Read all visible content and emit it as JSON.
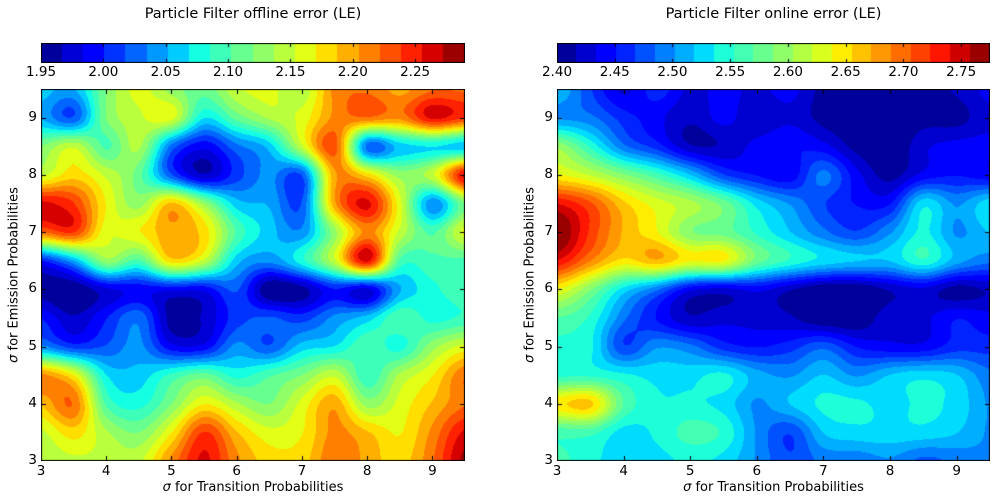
{
  "figure": {
    "background": "#ffffff",
    "text_color": "#000000"
  },
  "chart_data": [
    {
      "type": "heatmap",
      "title": "Particle Filter offline error (LE)",
      "xlabel": "σ for Transition Probabilities",
      "ylabel": "σ for Emission Probabilities",
      "colormap": "jet",
      "levels": 20,
      "vmin": 1.95,
      "vmax": 2.29,
      "colorbar_tick_values": [
        1.95,
        2.0,
        2.05,
        2.1,
        2.15,
        2.2,
        2.25
      ],
      "colorbar_tick_labels": [
        "1.95",
        "2.00",
        "2.05",
        "2.10",
        "2.15",
        "2.20",
        "2.25"
      ],
      "x_ticks": [
        3,
        4,
        5,
        6,
        7,
        8,
        9
      ],
      "y_ticks": [
        3,
        4,
        5,
        6,
        7,
        8,
        9
      ],
      "x_range": [
        3,
        9.5
      ],
      "y_range": [
        3,
        9.5
      ],
      "grid_x": [
        3.0,
        3.5,
        4.0,
        4.5,
        5.0,
        5.5,
        6.0,
        6.5,
        7.0,
        7.5,
        8.0,
        8.5,
        9.0,
        9.5
      ],
      "grid_y": [
        3.0,
        3.5,
        4.0,
        4.5,
        5.0,
        5.5,
        6.0,
        6.5,
        7.0,
        7.5,
        8.0,
        8.5,
        9.0,
        9.5
      ],
      "values_note": "approximate error values estimated from contour colors; rows ordered bottom (y=3.0) to top (y=9.5)",
      "values": [
        [
          2.14,
          2.15,
          2.15,
          2.15,
          2.21,
          2.26,
          2.21,
          2.18,
          2.18,
          2.22,
          2.2,
          2.18,
          2.22,
          2.28
        ],
        [
          2.15,
          2.18,
          2.14,
          2.12,
          2.17,
          2.24,
          2.19,
          2.16,
          2.17,
          2.21,
          2.19,
          2.17,
          2.21,
          2.26
        ],
        [
          2.19,
          2.22,
          2.1,
          2.08,
          2.12,
          2.17,
          2.14,
          2.12,
          2.16,
          2.2,
          2.13,
          2.16,
          2.19,
          2.22
        ],
        [
          2.21,
          2.17,
          2.07,
          2.06,
          2.09,
          2.11,
          2.08,
          2.1,
          2.12,
          2.15,
          2.09,
          2.14,
          2.17,
          2.22
        ],
        [
          2.04,
          2.01,
          2.02,
          2.04,
          1.99,
          1.99,
          2.04,
          2.02,
          2.06,
          2.07,
          2.1,
          2.08,
          2.13,
          2.16
        ],
        [
          2.0,
          1.97,
          2.0,
          2.03,
          1.96,
          1.97,
          2.01,
          2.02,
          2.01,
          2.04,
          2.06,
          2.1,
          2.08,
          2.09
        ],
        [
          1.96,
          1.95,
          1.98,
          1.99,
          1.99,
          1.99,
          2.02,
          1.95,
          1.96,
          2.0,
          1.98,
          2.05,
          2.08,
          2.1
        ],
        [
          2.0,
          2.05,
          2.13,
          2.1,
          2.18,
          2.15,
          2.06,
          2.04,
          2.08,
          2.15,
          2.26,
          2.1,
          2.1,
          2.1
        ],
        [
          2.22,
          2.24,
          2.16,
          2.17,
          2.2,
          2.18,
          2.1,
          2.06,
          2.04,
          2.13,
          2.21,
          2.15,
          2.1,
          2.16
        ],
        [
          2.26,
          2.24,
          2.17,
          2.13,
          2.19,
          2.13,
          2.06,
          2.05,
          2.02,
          2.2,
          2.26,
          2.16,
          2.04,
          2.12
        ],
        [
          2.15,
          2.18,
          2.15,
          2.11,
          2.02,
          1.97,
          2.01,
          2.04,
          2.02,
          2.2,
          2.18,
          2.13,
          2.15,
          2.26
        ],
        [
          2.12,
          2.15,
          2.1,
          2.14,
          2.03,
          1.99,
          2.03,
          2.06,
          2.15,
          2.23,
          2.03,
          2.06,
          2.07,
          2.06
        ],
        [
          2.05,
          2.02,
          2.12,
          2.15,
          2.16,
          2.07,
          2.11,
          2.14,
          2.16,
          2.21,
          2.22,
          2.21,
          2.26,
          2.24
        ],
        [
          2.06,
          2.05,
          2.12,
          2.16,
          2.13,
          2.11,
          2.15,
          2.16,
          2.14,
          2.21,
          2.22,
          2.2,
          2.22,
          2.22
        ]
      ]
    },
    {
      "type": "heatmap",
      "title": "Particle Filter online error (LE)",
      "xlabel": "σ for Transition Probabilities",
      "ylabel": "σ for Emission Probabilities",
      "colormap": "jet",
      "levels": 22,
      "vmin": 2.4,
      "vmax": 2.775,
      "colorbar_tick_values": [
        2.4,
        2.45,
        2.5,
        2.55,
        2.6,
        2.65,
        2.7,
        2.75
      ],
      "colorbar_tick_labels": [
        "2.40",
        "2.45",
        "2.50",
        "2.55",
        "2.60",
        "2.65",
        "2.70",
        "2.75"
      ],
      "x_ticks": [
        3,
        4,
        5,
        6,
        7,
        8,
        9
      ],
      "y_ticks": [
        3,
        4,
        5,
        6,
        7,
        8,
        9
      ],
      "x_range": [
        3,
        9.5
      ],
      "y_range": [
        3,
        9.5
      ],
      "grid_x": [
        3.0,
        3.5,
        4.0,
        4.5,
        5.0,
        5.5,
        6.0,
        6.5,
        7.0,
        7.5,
        8.0,
        8.5,
        9.0,
        9.5
      ],
      "grid_y": [
        3.0,
        3.5,
        4.0,
        4.5,
        5.0,
        5.5,
        6.0,
        6.5,
        7.0,
        7.5,
        8.0,
        8.5,
        9.0,
        9.5
      ],
      "values_note": "approximate error values estimated from contour colors; rows ordered bottom (y=3.0) to top (y=9.5)",
      "values": [
        [
          2.56,
          2.54,
          2.53,
          2.53,
          2.54,
          2.53,
          2.5,
          2.47,
          2.49,
          2.49,
          2.5,
          2.48,
          2.49,
          2.5
        ],
        [
          2.56,
          2.56,
          2.53,
          2.54,
          2.56,
          2.55,
          2.5,
          2.47,
          2.52,
          2.53,
          2.53,
          2.53,
          2.52,
          2.5
        ],
        [
          2.65,
          2.66,
          2.57,
          2.54,
          2.54,
          2.53,
          2.5,
          2.52,
          2.54,
          2.54,
          2.53,
          2.54,
          2.53,
          2.5
        ],
        [
          2.55,
          2.55,
          2.54,
          2.53,
          2.53,
          2.54,
          2.51,
          2.5,
          2.52,
          2.5,
          2.52,
          2.53,
          2.52,
          2.49
        ],
        [
          2.55,
          2.54,
          2.47,
          2.5,
          2.49,
          2.46,
          2.45,
          2.46,
          2.48,
          2.45,
          2.44,
          2.44,
          2.46,
          2.46
        ],
        [
          2.57,
          2.55,
          2.49,
          2.45,
          2.42,
          2.43,
          2.43,
          2.42,
          2.4,
          2.4,
          2.43,
          2.43,
          2.45,
          2.44
        ],
        [
          2.64,
          2.59,
          2.53,
          2.49,
          2.44,
          2.43,
          2.44,
          2.42,
          2.4,
          2.4,
          2.42,
          2.43,
          2.41,
          2.42
        ],
        [
          2.74,
          2.69,
          2.65,
          2.67,
          2.64,
          2.64,
          2.58,
          2.55,
          2.53,
          2.52,
          2.52,
          2.55,
          2.51,
          2.49
        ],
        [
          2.78,
          2.72,
          2.67,
          2.64,
          2.59,
          2.58,
          2.55,
          2.52,
          2.49,
          2.47,
          2.5,
          2.54,
          2.5,
          2.52
        ],
        [
          2.74,
          2.71,
          2.66,
          2.63,
          2.61,
          2.58,
          2.53,
          2.5,
          2.47,
          2.45,
          2.45,
          2.53,
          2.5,
          2.53
        ],
        [
          2.64,
          2.62,
          2.59,
          2.56,
          2.52,
          2.47,
          2.45,
          2.44,
          2.49,
          2.44,
          2.41,
          2.44,
          2.45,
          2.44
        ],
        [
          2.6,
          2.55,
          2.49,
          2.46,
          2.42,
          2.42,
          2.44,
          2.45,
          2.44,
          2.41,
          2.4,
          2.43,
          2.44,
          2.44
        ],
        [
          2.5,
          2.49,
          2.46,
          2.44,
          2.42,
          2.44,
          2.42,
          2.43,
          2.41,
          2.4,
          2.4,
          2.41,
          2.41,
          2.43
        ],
        [
          2.52,
          2.47,
          2.43,
          2.46,
          2.43,
          2.44,
          2.43,
          2.44,
          2.41,
          2.4,
          2.4,
          2.41,
          2.42,
          2.44
        ]
      ]
    }
  ]
}
